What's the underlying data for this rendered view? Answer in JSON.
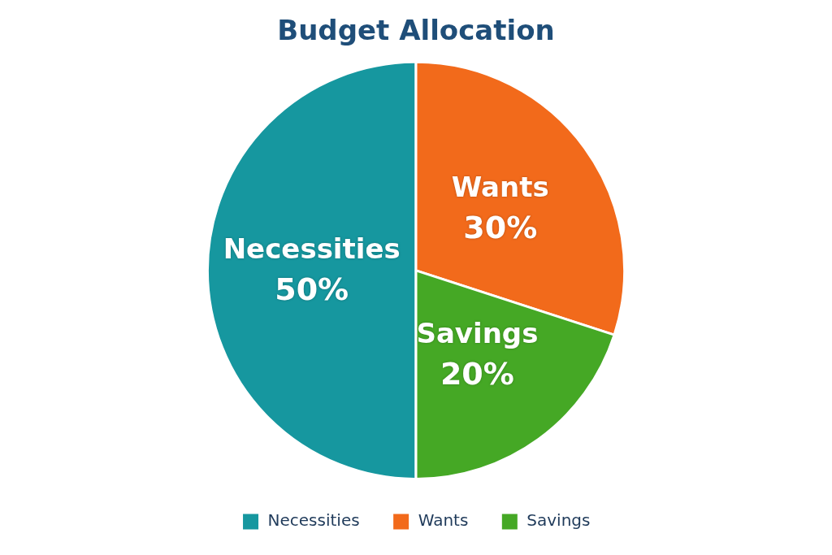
{
  "chart_data": {
    "type": "pie",
    "title": "Budget Allocation",
    "categories": [
      "Necessities",
      "Wants",
      "Savings"
    ],
    "values": [
      50,
      30,
      20
    ],
    "colors": [
      "#16979f",
      "#f26a1b",
      "#45a825"
    ],
    "value_labels": [
      "50%",
      "30%",
      "20%"
    ],
    "legend": "bottom"
  }
}
